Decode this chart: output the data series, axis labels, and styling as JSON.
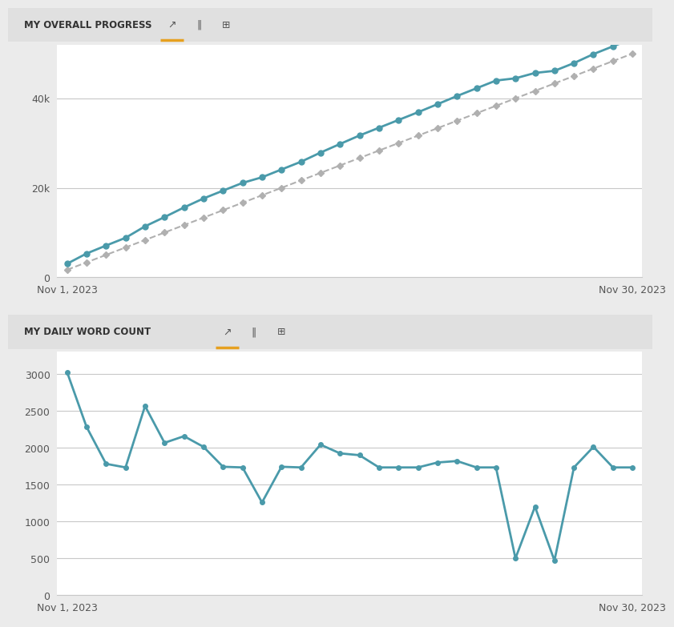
{
  "title1": "MY OVERALL PROGRESS",
  "title2": "MY DAILY WORD COUNT",
  "daily_words": [
    3027,
    2283,
    1782,
    1733,
    2566,
    2067,
    2157,
    2012,
    1742,
    1733,
    1258,
    1742,
    1733,
    2042,
    1924,
    1899,
    1733,
    1733,
    1733,
    1800,
    1820,
    1733,
    1733,
    500,
    1200,
    470,
    1733,
    2012,
    1733,
    1733
  ],
  "target_total": 50000,
  "days": 30,
  "teal_color": "#4a9aaa",
  "gray_color": "#b0b0b0",
  "bg_color": "#ebebeb",
  "panel_bg": "#ffffff",
  "grid_color": "#c8c8c8",
  "text_color": "#333333",
  "header_bg": "#e0e0e0",
  "orange_color": "#e6a020",
  "date_start": "Nov 1, 2023",
  "date_end": "Nov 30, 2023",
  "yticks_top": [
    0,
    20000,
    40000
  ],
  "ytick_labels_top": [
    "0",
    "20k",
    "40k"
  ],
  "yticks_bottom": [
    0,
    500,
    1000,
    1500,
    2000,
    2500,
    3000
  ],
  "ytick_labels_bottom": [
    "0",
    "500",
    "1000",
    "1500",
    "2000",
    "2500",
    "3000"
  ]
}
